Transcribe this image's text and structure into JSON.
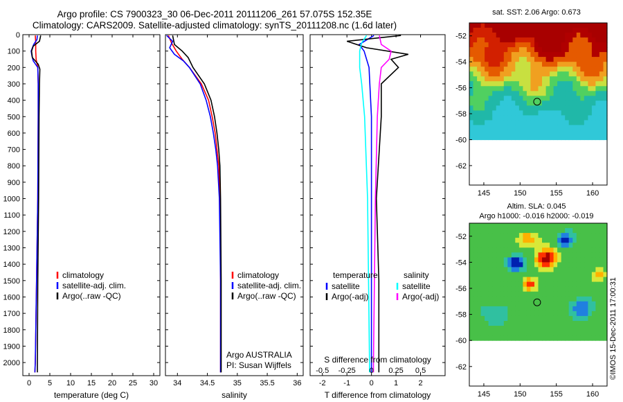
{
  "header": {
    "title_line1": "Argo profile: CS 7900323_30 06-Dec-2011 20111206_261 57.075S 152.35E",
    "title_line2": "Climatology: CARS2009. Satellite-adjusted climatology: synTS_20111208.nc (1.6d later)"
  },
  "credit": "©IMOS 15-Dec-2011 17:00:31",
  "colors": {
    "climatology": "#ff0000",
    "satellite": "#0000ff",
    "argo": "#000000",
    "salinity_satellite": "#00ffff",
    "salinity_argo": "#ff00ff"
  },
  "chart_data": [
    {
      "id": "temperature",
      "type": "line",
      "xlabel": "temperature (deg C)",
      "ylabel": "",
      "xlim": [
        -1.5,
        31.5
      ],
      "ylim": [
        2080,
        0
      ],
      "xticks": [
        0,
        5,
        10,
        15,
        20,
        25,
        30
      ],
      "yticks": [
        0,
        100,
        200,
        300,
        400,
        500,
        600,
        700,
        800,
        900,
        1000,
        1100,
        1200,
        1300,
        1400,
        1500,
        1600,
        1700,
        1800,
        1900,
        2000
      ],
      "legend": [
        "climatology",
        "satellite-adj. clim.",
        "Argo(..raw -QC)"
      ],
      "series": [
        {
          "name": "climatology",
          "depth": [
            5,
            50,
            100,
            150,
            200,
            300,
            500,
            1000,
            1500,
            2000,
            2060
          ],
          "values": [
            1.5,
            1.6,
            1.6,
            1.7,
            2.1,
            2.2,
            2.2,
            2.1,
            1.8,
            1.5,
            1.4
          ]
        },
        {
          "name": "satellite-adj. clim.",
          "depth": [
            5,
            30,
            60,
            100,
            130,
            160,
            200,
            300,
            500,
            1000,
            1500,
            2000,
            2060
          ],
          "values": [
            2.0,
            1.9,
            1.1,
            0.5,
            0.7,
            1.0,
            2.1,
            2.2,
            2.2,
            2.1,
            1.8,
            1.5,
            1.4
          ]
        },
        {
          "name": "Argo(..raw -QC)",
          "depth": [
            5,
            40,
            70,
            100,
            140,
            180,
            210,
            300,
            500,
            1000,
            1500,
            2000,
            2060
          ],
          "values": [
            2.8,
            2.5,
            1.0,
            0.6,
            0.8,
            2.2,
            2.6,
            2.5,
            2.4,
            2.3,
            2.1,
            2.0,
            2.0
          ]
        }
      ]
    },
    {
      "id": "salinity",
      "type": "line",
      "xlabel": "salinity",
      "xlim": [
        33.8,
        36.1
      ],
      "ylim": [
        2080,
        0
      ],
      "xticks": [
        34,
        34.5,
        35,
        35.5,
        36
      ],
      "legend": [
        "climatology",
        "satellite-adj. clim.",
        "Argo(..raw -QC)"
      ],
      "annotation": [
        "Argo AUSTRALIA",
        "PI: Susan Wijffels"
      ],
      "series": [
        {
          "name": "climatology",
          "depth": [
            5,
            50,
            100,
            150,
            200,
            300,
            400,
            500,
            600,
            700,
            800,
            1000,
            1500,
            2000,
            2060
          ],
          "values": [
            33.85,
            33.9,
            33.98,
            34.08,
            34.2,
            34.4,
            34.52,
            34.58,
            34.63,
            34.66,
            34.69,
            34.71,
            34.72,
            34.72,
            34.72
          ]
        },
        {
          "name": "satellite-adj. clim.",
          "depth": [
            5,
            40,
            80,
            120,
            160,
            200,
            300,
            400,
            500,
            600,
            700,
            800,
            1000,
            1500,
            2000,
            2060
          ],
          "values": [
            33.82,
            33.92,
            33.87,
            33.95,
            34.1,
            34.2,
            34.38,
            34.48,
            34.55,
            34.6,
            34.64,
            34.67,
            34.7,
            34.72,
            34.72,
            34.72
          ]
        },
        {
          "name": "Argo(..raw -QC)",
          "depth": [
            5,
            60,
            100,
            140,
            200,
            300,
            400,
            500,
            600,
            700,
            800,
            1000,
            1500,
            2000,
            2060
          ],
          "values": [
            33.92,
            33.95,
            34.08,
            34.18,
            34.26,
            34.45,
            34.56,
            34.62,
            34.66,
            34.69,
            34.71,
            34.72,
            34.73,
            34.73,
            34.73
          ]
        }
      ]
    },
    {
      "id": "difference",
      "type": "line",
      "xlabel": "T difference from climatology",
      "xlabel2": "S difference from climatology",
      "xlim": [
        -2.5,
        3
      ],
      "ylim": [
        2080,
        0
      ],
      "xticks": [
        -2,
        -1,
        0,
        1,
        2
      ],
      "xticks2": [
        -0.5,
        -0.25,
        0,
        0.25,
        0.5
      ],
      "legend_temperature_title": "temperature",
      "legend_salinity_title": "salinity",
      "legend": [
        "satellite",
        "Argo(-adj)",
        "satellite",
        "Argo(-adj)"
      ],
      "series": [
        {
          "name": "T satellite",
          "depth": [
            5,
            60,
            100,
            200,
            500,
            1000,
            1500,
            2000,
            2060
          ],
          "values": [
            0.1,
            -0.5,
            -0.3,
            -0.1,
            0.0,
            0.0,
            0.0,
            0.0,
            0.0
          ]
        },
        {
          "name": "T Argo(-adj)",
          "depth": [
            5,
            40,
            80,
            120,
            150,
            200,
            300,
            500,
            1000,
            1500,
            2000,
            2060
          ],
          "values": [
            1.2,
            -1.0,
            -0.2,
            1.5,
            0.8,
            1.1,
            0.4,
            0.4,
            0.2,
            0.3,
            0.3,
            0.3
          ]
        },
        {
          "name": "S satellite",
          "depth": [
            5,
            50,
            100,
            200,
            300,
            500,
            1000,
            1500,
            2000,
            2060
          ],
          "values": [
            -0.05,
            -0.1,
            -0.12,
            -0.12,
            -0.1,
            -0.07,
            -0.04,
            -0.03,
            -0.02,
            -0.02
          ]
        },
        {
          "name": "S Argo(-adj)",
          "depth": [
            5,
            60,
            100,
            150,
            200,
            300,
            500,
            1000,
            1500,
            2000,
            2060
          ],
          "values": [
            0.08,
            0.1,
            0.2,
            0.18,
            0.1,
            0.08,
            0.06,
            0.04,
            0.03,
            0.02,
            0.02
          ]
        }
      ]
    },
    {
      "id": "sst-map",
      "type": "heatmap",
      "title": "sat. SST: 2.06 Argo: 0.673",
      "xticks": [
        145,
        150,
        155,
        160
      ],
      "yticks": [
        -52,
        -54,
        -56,
        -58,
        -60,
        -62
      ],
      "xlim": [
        143,
        162
      ],
      "ylim": [
        -63.5,
        -51
      ]
    },
    {
      "id": "sla-map",
      "type": "heatmap",
      "title_line1": "Altim. SLA: 0.045",
      "title_line2": "Argo h1000: -0.016 h2000: -0.019",
      "xticks": [
        145,
        150,
        155,
        160
      ],
      "yticks": [
        -52,
        -54,
        -56,
        -58,
        -60,
        -62
      ],
      "xlim": [
        143,
        162
      ],
      "ylim": [
        -63.5,
        -51
      ]
    }
  ]
}
